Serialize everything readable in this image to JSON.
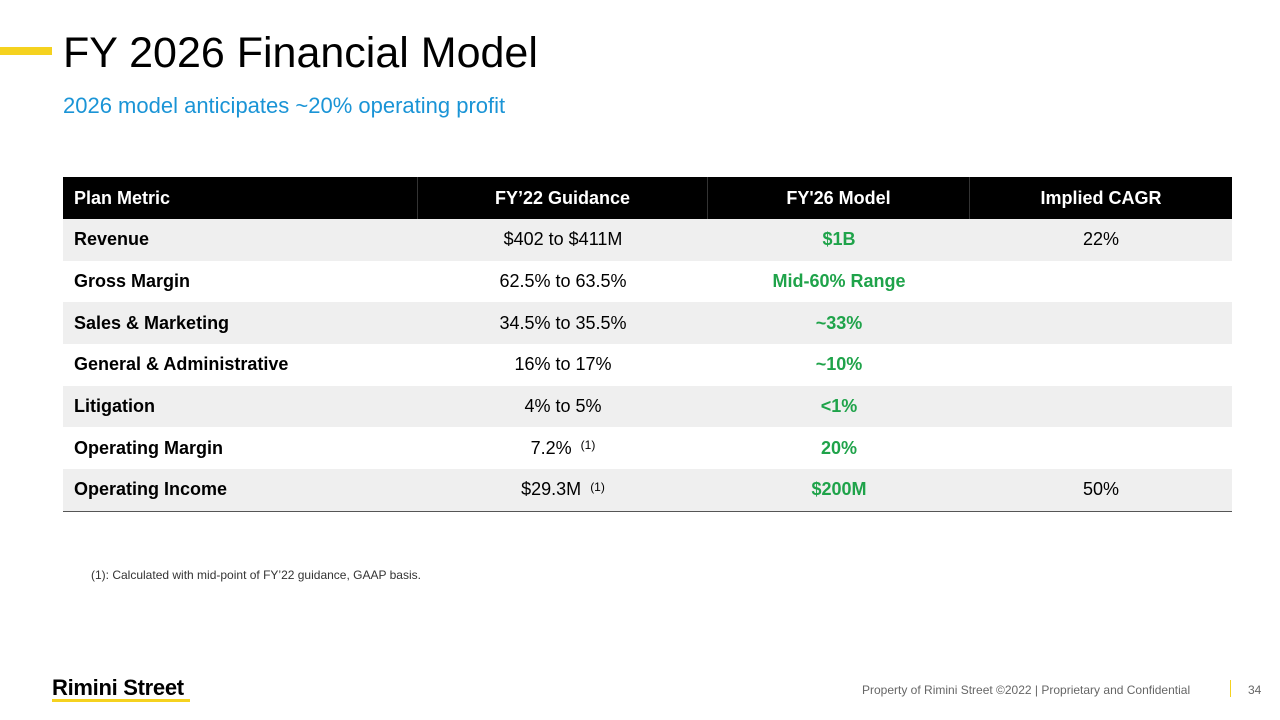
{
  "title": "FY 2026 Financial Model",
  "subtitle": "2026 model anticipates ~20% operating profit",
  "table": {
    "headers": [
      "Plan Metric",
      "FY’22 Guidance",
      "FY'26 Model",
      "Implied CAGR"
    ],
    "rows": [
      {
        "metric": "Revenue",
        "guidance": "$402 to $411M",
        "note": "",
        "model": "$1B",
        "cagr": "22%"
      },
      {
        "metric": "Gross Margin",
        "guidance": "62.5% to 63.5%",
        "note": "",
        "model": "Mid-60% Range",
        "cagr": ""
      },
      {
        "metric": "Sales & Marketing",
        "guidance": "34.5% to 35.5%",
        "note": "",
        "model": "~33%",
        "cagr": ""
      },
      {
        "metric": "General & Administrative",
        "guidance": "16% to 17%",
        "note": "",
        "model": "~10%",
        "cagr": ""
      },
      {
        "metric": "Litigation",
        "guidance": "4% to 5%",
        "note": "",
        "model": "<1%",
        "cagr": ""
      },
      {
        "metric": "Operating Margin",
        "guidance": "7.2%",
        "note": "(1)",
        "model": "20%",
        "cagr": ""
      },
      {
        "metric": "Operating Income",
        "guidance": "$29.3M",
        "note": "(1)",
        "model": "$200M",
        "cagr": "50%"
      }
    ]
  },
  "footnote": "(1): Calculated with mid-point of FY’22 guidance, GAAP basis.",
  "footer": {
    "logo": "Rimini Street",
    "text": "Property of Rimini Street ©2022  |  Proprietary and Confidential",
    "page": "34"
  },
  "colors": {
    "accent": "#f5d21f",
    "subtitle": "#1a94d6",
    "model_value": "#1fa34a"
  }
}
